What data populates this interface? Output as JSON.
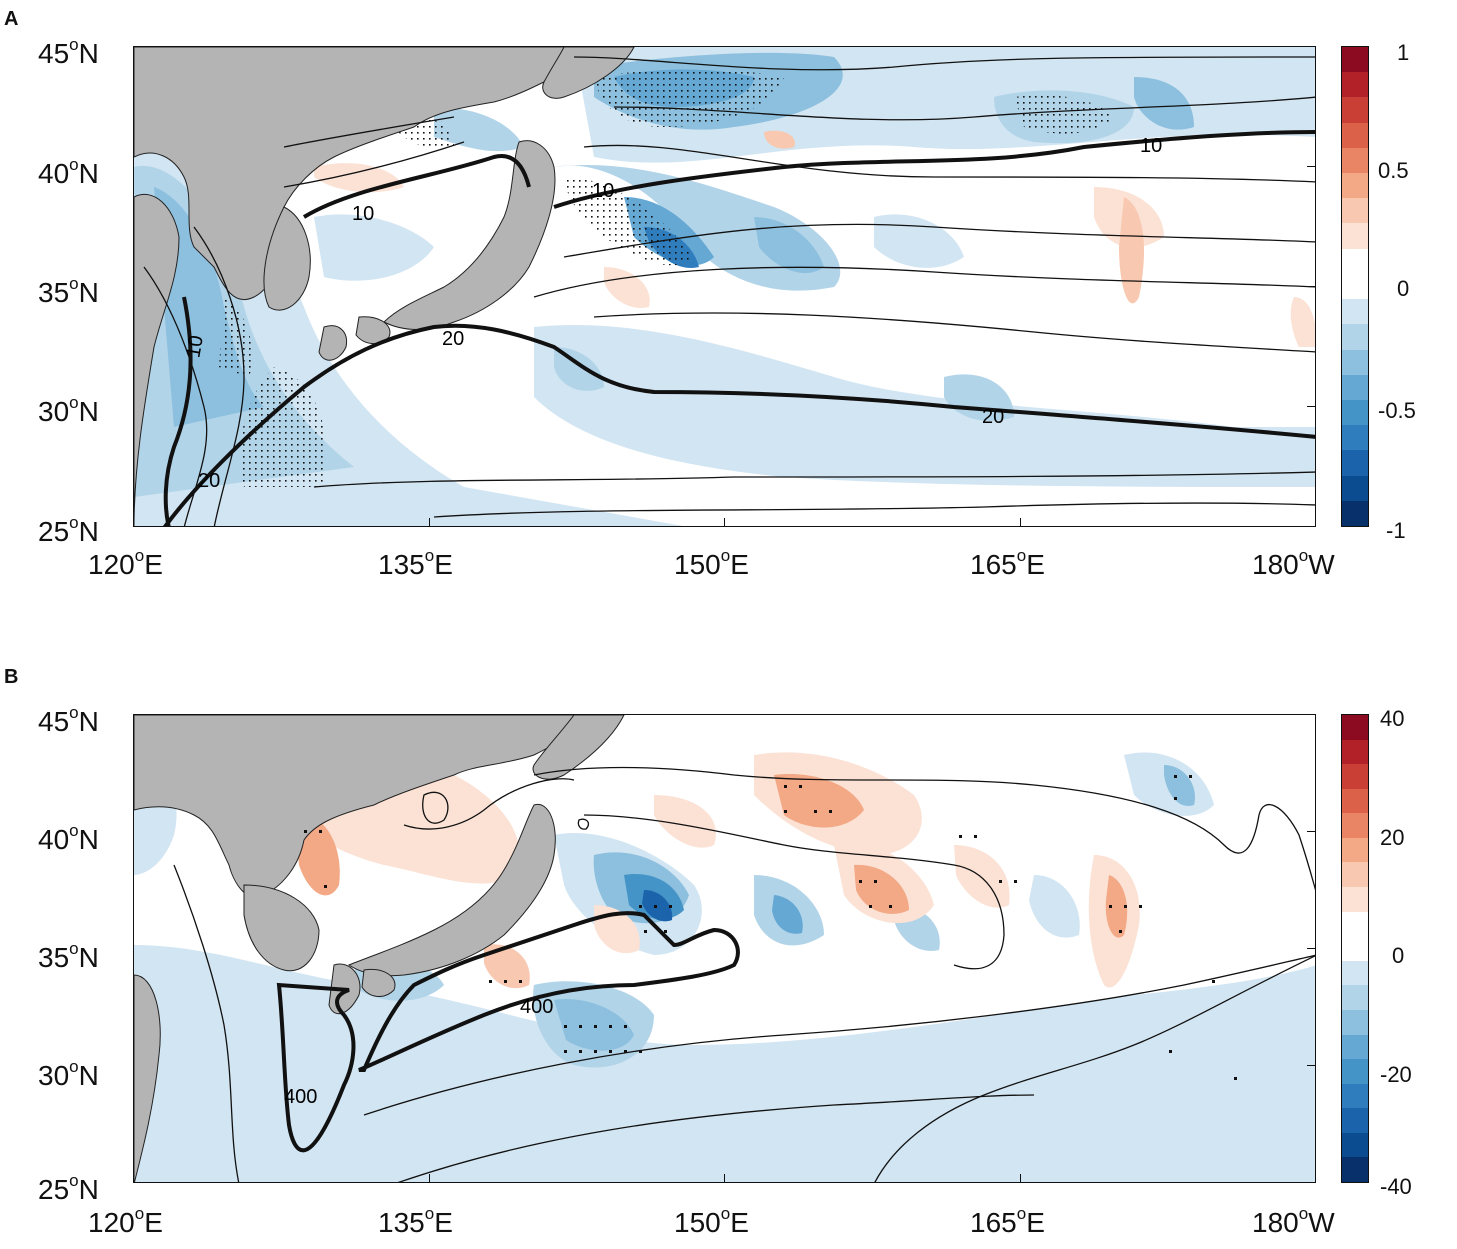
{
  "panels": [
    {
      "letter": "A",
      "lat_ticks": [
        {
          "deg": "45",
          "hem": "N"
        },
        {
          "deg": "40",
          "hem": "N"
        },
        {
          "deg": "35",
          "hem": "N"
        },
        {
          "deg": "30",
          "hem": "N"
        },
        {
          "deg": "25",
          "hem": "N"
        }
      ],
      "lon_ticks": [
        {
          "deg": "120",
          "hem": "E"
        },
        {
          "deg": "135",
          "hem": "E"
        },
        {
          "deg": "150",
          "hem": "E"
        },
        {
          "deg": "165",
          "hem": "E"
        },
        {
          "deg": "180",
          "hem": "W"
        }
      ],
      "colorbar_ticks": [
        "1",
        "0.5",
        "0",
        "-0.5",
        "-1"
      ],
      "contour_labels": [
        "10",
        "10",
        "10",
        "10",
        "20",
        "20",
        "20"
      ]
    },
    {
      "letter": "B",
      "lat_ticks": [
        {
          "deg": "45",
          "hem": "N"
        },
        {
          "deg": "40",
          "hem": "N"
        },
        {
          "deg": "35",
          "hem": "N"
        },
        {
          "deg": "30",
          "hem": "N"
        },
        {
          "deg": "25",
          "hem": "N"
        }
      ],
      "lon_ticks": [
        {
          "deg": "120",
          "hem": "E"
        },
        {
          "deg": "135",
          "hem": "E"
        },
        {
          "deg": "150",
          "hem": "E"
        },
        {
          "deg": "165",
          "hem": "E"
        },
        {
          "deg": "180",
          "hem": "W"
        }
      ],
      "colorbar_ticks": [
        "40",
        "20",
        "0",
        "-20",
        "-40"
      ],
      "contour_labels": [
        "400",
        "400"
      ]
    }
  ],
  "colors": {
    "land": "#b4b4b4",
    "colormap": [
      "#08306b",
      "#0b4c91",
      "#1b64ab",
      "#2f7dbd",
      "#4594c7",
      "#65a8d3",
      "#8dc0de",
      "#b2d4e9",
      "#d2e5f2",
      "#ffffff",
      "#ffffff",
      "#fbe2d5",
      "#f8c8b0",
      "#f3a886",
      "#e98565",
      "#db6248",
      "#c93e35",
      "#b12127",
      "#8c0b20"
    ]
  }
}
